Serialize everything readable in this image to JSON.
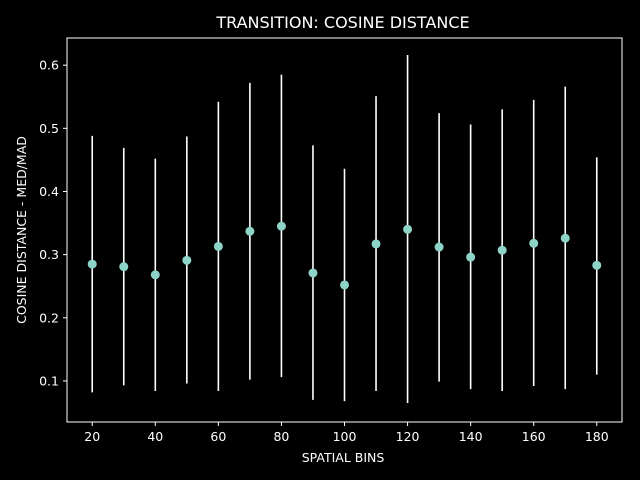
{
  "chart_data": {
    "type": "scatter",
    "title": "TRANSITION: COSINE DISTANCE",
    "xlabel": "SPATIAL BINS",
    "ylabel": "COSINE DISTANCE - MED/MAD",
    "xlim": [
      12,
      188
    ],
    "ylim": [
      0.035,
      0.643
    ],
    "xticks": [
      20,
      40,
      60,
      80,
      100,
      120,
      140,
      160,
      180
    ],
    "yticks": [
      0.1,
      0.2,
      0.3,
      0.4,
      0.5,
      0.6
    ],
    "xtick_labels": [
      "20",
      "40",
      "60",
      "80",
      "100",
      "120",
      "140",
      "160",
      "180"
    ],
    "ytick_labels": [
      "0.1",
      "0.2",
      "0.3",
      "0.4",
      "0.5",
      "0.6"
    ],
    "grid": false,
    "colors": {
      "background": "#000000",
      "marker": "#8dd3c7",
      "errorbar": "#ffffff",
      "axes": "#ffffff"
    },
    "points": [
      {
        "x": 20,
        "y": 0.285,
        "low": 0.082,
        "high": 0.488
      },
      {
        "x": 30,
        "y": 0.281,
        "low": 0.093,
        "high": 0.469
      },
      {
        "x": 40,
        "y": 0.268,
        "low": 0.084,
        "high": 0.452
      },
      {
        "x": 50,
        "y": 0.291,
        "low": 0.096,
        "high": 0.487
      },
      {
        "x": 60,
        "y": 0.313,
        "low": 0.084,
        "high": 0.542
      },
      {
        "x": 70,
        "y": 0.337,
        "low": 0.102,
        "high": 0.572
      },
      {
        "x": 80,
        "y": 0.345,
        "low": 0.106,
        "high": 0.585
      },
      {
        "x": 90,
        "y": 0.271,
        "low": 0.07,
        "high": 0.473
      },
      {
        "x": 100,
        "y": 0.252,
        "low": 0.068,
        "high": 0.436
      },
      {
        "x": 110,
        "y": 0.317,
        "low": 0.084,
        "high": 0.551
      },
      {
        "x": 120,
        "y": 0.34,
        "low": 0.065,
        "high": 0.616
      },
      {
        "x": 130,
        "y": 0.312,
        "low": 0.099,
        "high": 0.524
      },
      {
        "x": 140,
        "y": 0.296,
        "low": 0.087,
        "high": 0.506
      },
      {
        "x": 150,
        "y": 0.307,
        "low": 0.084,
        "high": 0.53
      },
      {
        "x": 160,
        "y": 0.318,
        "low": 0.092,
        "high": 0.545
      },
      {
        "x": 170,
        "y": 0.326,
        "low": 0.087,
        "high": 0.566
      },
      {
        "x": 180,
        "y": 0.283,
        "low": 0.11,
        "high": 0.454
      }
    ]
  }
}
